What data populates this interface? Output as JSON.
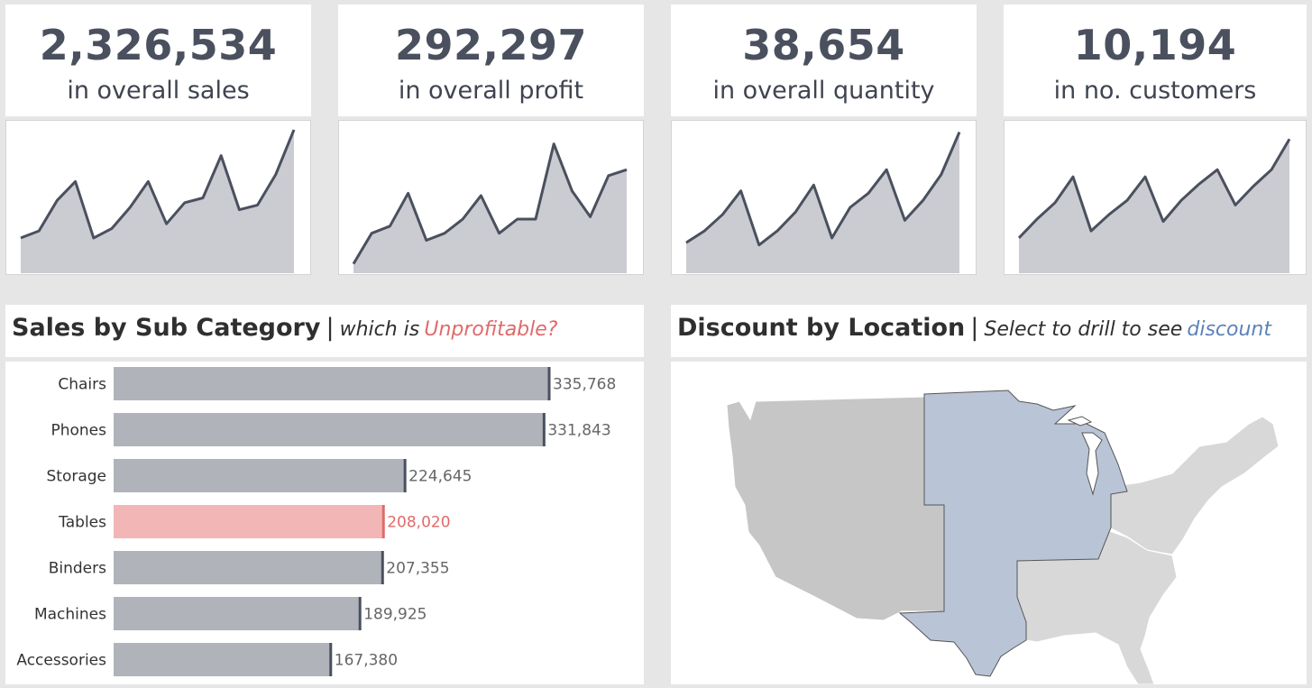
{
  "kpis": [
    {
      "value": "2,326,534",
      "label": "in overall sales",
      "trend": [
        0.3,
        0.36,
        0.62,
        0.78,
        0.3,
        0.38,
        0.56,
        0.78,
        0.42,
        0.6,
        0.64,
        1.0,
        0.54,
        0.58,
        0.84,
        1.22
      ]
    },
    {
      "value": "292,297",
      "label": "in overall profit",
      "trend": [
        0.08,
        0.34,
        0.4,
        0.68,
        0.28,
        0.34,
        0.46,
        0.66,
        0.34,
        0.46,
        0.46,
        1.1,
        0.7,
        0.48,
        0.83,
        0.88
      ]
    },
    {
      "value": "38,654",
      "label": "in overall quantity",
      "trend": [
        0.26,
        0.36,
        0.5,
        0.7,
        0.24,
        0.36,
        0.52,
        0.75,
        0.3,
        0.56,
        0.68,
        0.88,
        0.45,
        0.62,
        0.84,
        1.2
      ]
    },
    {
      "value": "10,194",
      "label": "in no. customers",
      "trend": [
        0.3,
        0.46,
        0.6,
        0.82,
        0.36,
        0.5,
        0.62,
        0.82,
        0.44,
        0.62,
        0.76,
        0.88,
        0.58,
        0.74,
        0.88,
        1.14
      ]
    }
  ],
  "colors": {
    "line": "#4a505e",
    "area": "#cbccd1",
    "bar": "#b1b3bb",
    "bar_highlight": "#f2b6b6",
    "marker": "#4a505e",
    "marker_highlight": "#e06a6a",
    "map_west": "#c6c6c6",
    "map_central": "#b9c5d6",
    "map_east": "#d8d8d8",
    "map_border": "#555555"
  },
  "sub_category_panel": {
    "title": "Sales by Sub Category",
    "separator": "|",
    "subtitle_prefix": "which is",
    "subtitle_highlight": "Unprofitable?"
  },
  "chart_data": {
    "type": "bar",
    "orientation": "horizontal",
    "categories": [
      "Chairs",
      "Phones",
      "Storage",
      "Tables",
      "Binders",
      "Machines",
      "Accessories"
    ],
    "values": [
      335768,
      331843,
      224645,
      208020,
      207355,
      189925,
      167380
    ],
    "value_labels": [
      "335,768",
      "331,843",
      "224,645",
      "208,020",
      "207,355",
      "189,925",
      "167,380"
    ],
    "highlighted": [
      "Tables"
    ],
    "xlim": [
      0,
      335768
    ]
  },
  "map_panel": {
    "title": "Discount by Location",
    "separator": "|",
    "subtitle_prefix": "Select to drill to see",
    "subtitle_highlight": "discount",
    "regions": [
      "West",
      "Central",
      "East",
      "South"
    ]
  }
}
